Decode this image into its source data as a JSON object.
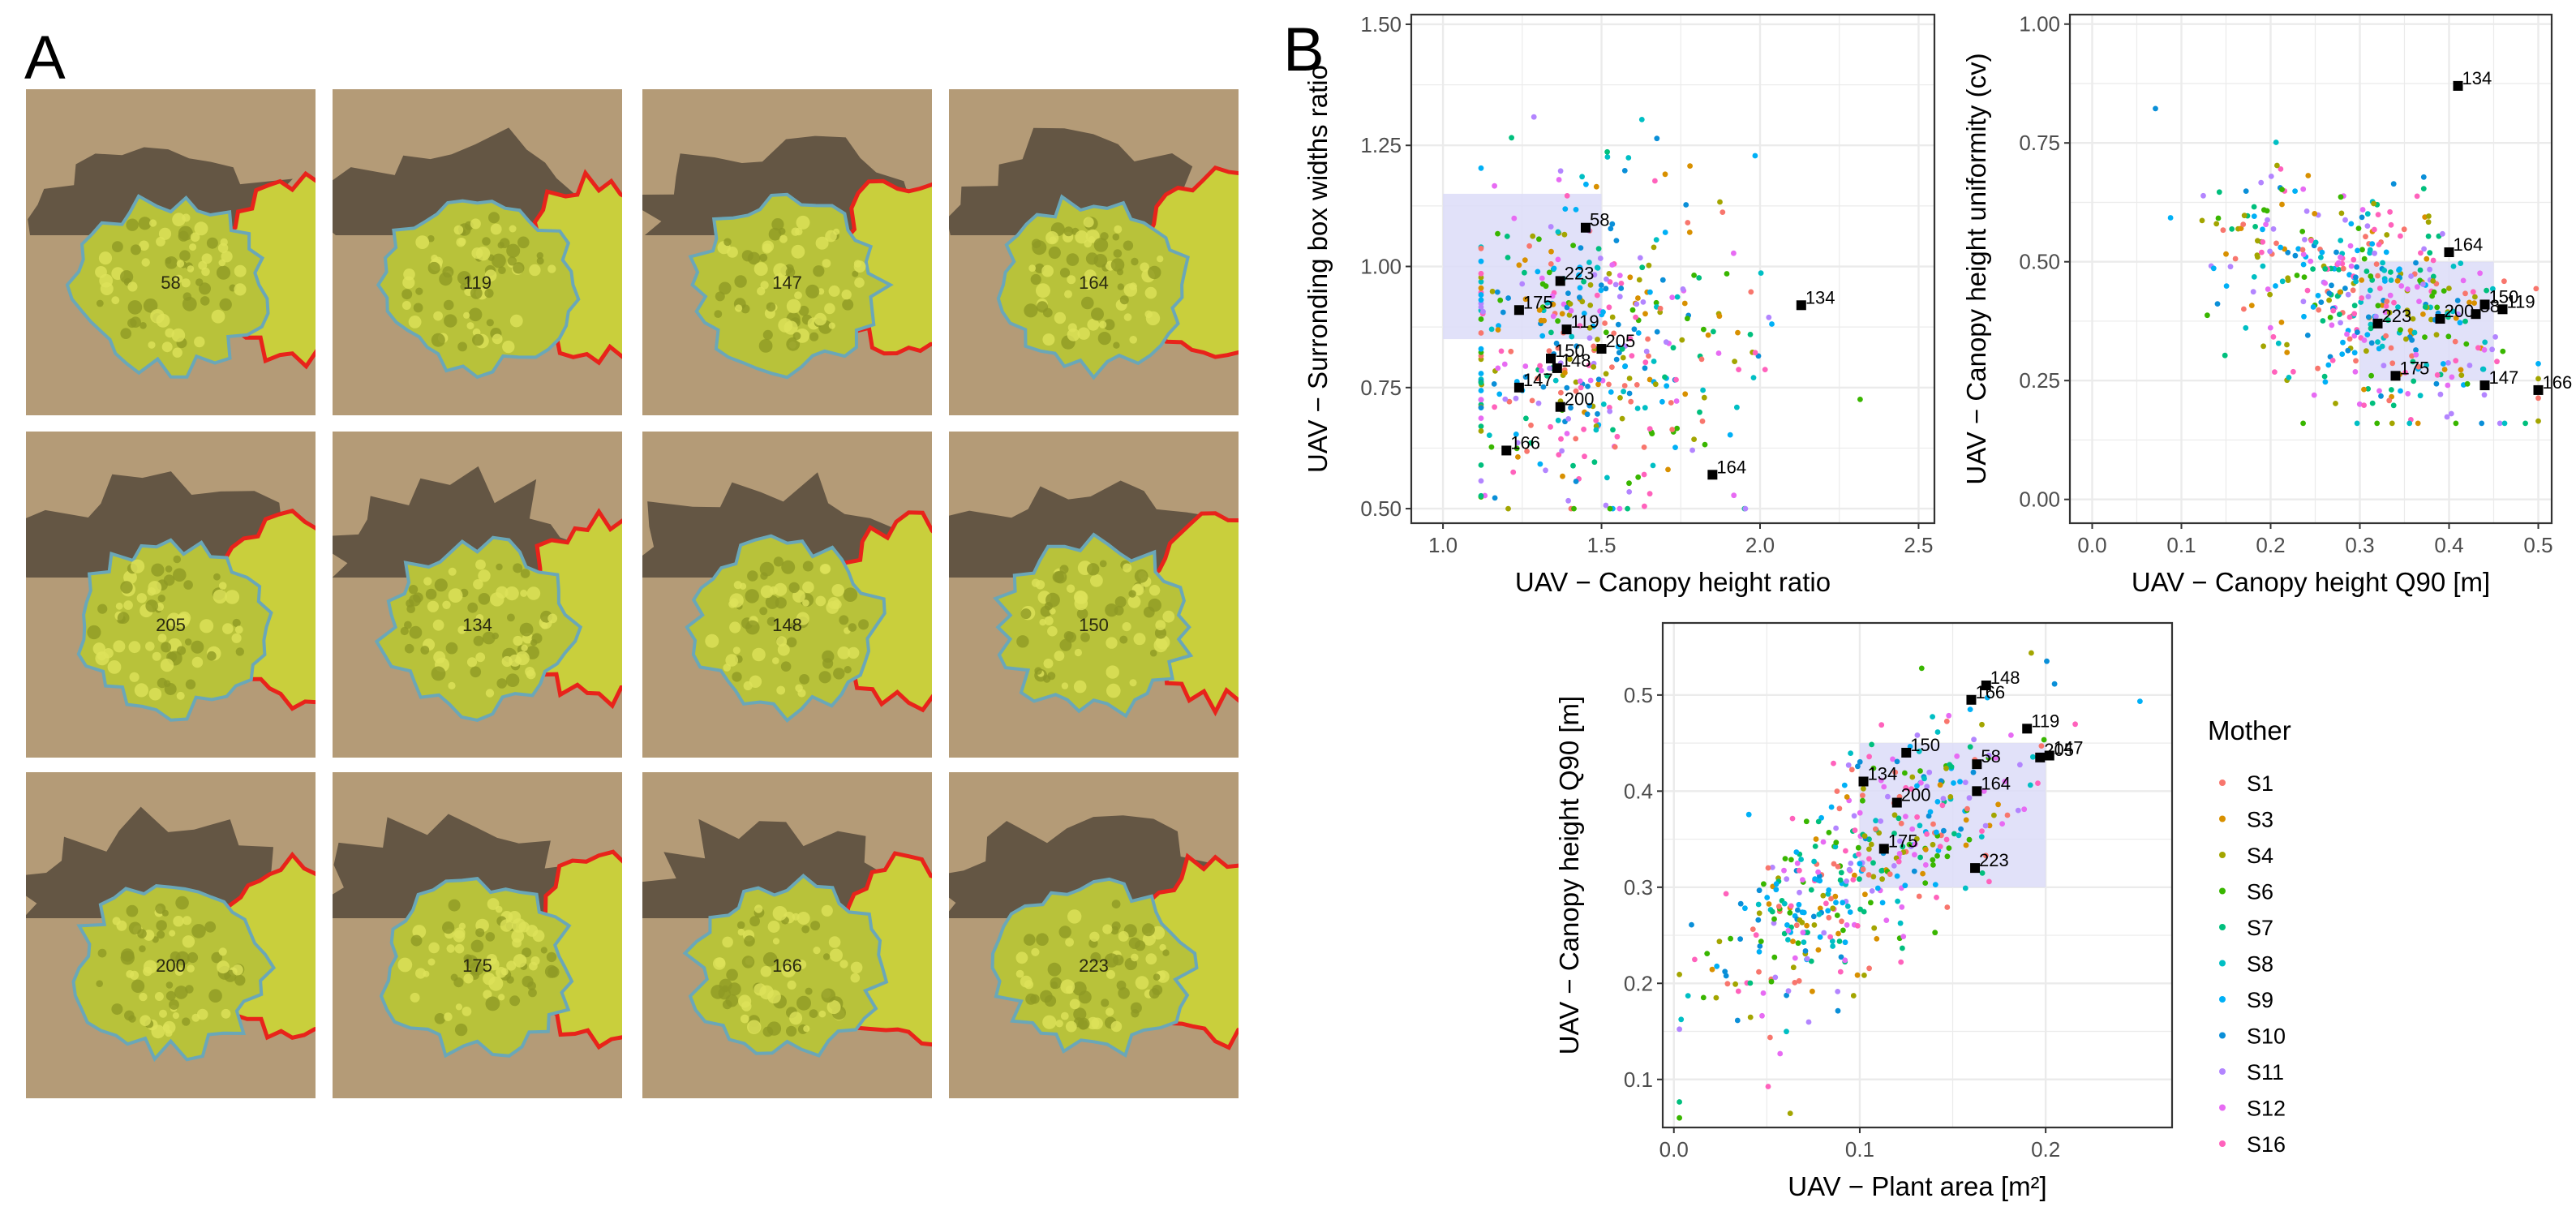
{
  "panel_a": {
    "letter": "A",
    "tiles": [
      {
        "label": "58"
      },
      {
        "label": "119"
      },
      {
        "label": "147"
      },
      {
        "label": "164"
      },
      {
        "label": "205"
      },
      {
        "label": "134"
      },
      {
        "label": "148"
      },
      {
        "label": "150"
      },
      {
        "label": "200"
      },
      {
        "label": "175"
      },
      {
        "label": "166"
      },
      {
        "label": "223"
      }
    ]
  },
  "panel_b": {
    "letter": "B"
  },
  "colors": {
    "highlight_box": "#dcdcf8",
    "highlight_point": "#000000",
    "grid": "#ebebeb",
    "soil": "#b49b77",
    "plant": "#c9cf3c",
    "outline_focus": "#6aa7b8",
    "outline_neighbor": "#e8231b"
  },
  "legend": {
    "title": "Mother",
    "entries": [
      {
        "name": "S1",
        "color": "#f8766d"
      },
      {
        "name": "S3",
        "color": "#d89000"
      },
      {
        "name": "S4",
        "color": "#a3a500"
      },
      {
        "name": "S6",
        "color": "#39b600"
      },
      {
        "name": "S7",
        "color": "#00bf7d"
      },
      {
        "name": "S8",
        "color": "#00bfc4"
      },
      {
        "name": "S9",
        "color": "#00b0f6"
      },
      {
        "name": "S10",
        "color": "#0a8fd8"
      },
      {
        "name": "S11",
        "color": "#b385ff"
      },
      {
        "name": "S12",
        "color": "#e76bf3"
      },
      {
        "name": "S16",
        "color": "#ff62bc"
      }
    ]
  },
  "chart_data": [
    {
      "type": "scatter",
      "id": "plot1",
      "xlabel": "UAV − Canopy height ratio",
      "ylabel": "UAV − Surronding box widths ratio",
      "xlim": [
        0.9,
        2.55
      ],
      "ylim": [
        0.47,
        1.52
      ],
      "xticks": [
        1.0,
        1.5,
        2.0,
        2.5
      ],
      "xtick_labels": [
        "1.0",
        "1.5",
        "2.0",
        "2.5"
      ],
      "yticks": [
        0.5,
        0.75,
        1.0,
        1.25,
        1.5
      ],
      "ytick_labels": [
        "0.50",
        "0.75",
        "1.00",
        "1.25",
        "1.50"
      ],
      "highlight_box": {
        "x": [
          1.0,
          1.5
        ],
        "y": [
          0.85,
          1.15
        ]
      },
      "highlighted_points": [
        {
          "id": "58",
          "x": 1.45,
          "y": 1.08
        },
        {
          "id": "223",
          "x": 1.37,
          "y": 0.97
        },
        {
          "id": "175",
          "x": 1.24,
          "y": 0.91
        },
        {
          "id": "119",
          "x": 1.39,
          "y": 0.87
        },
        {
          "id": "134",
          "x": 2.13,
          "y": 0.92
        },
        {
          "id": "205",
          "x": 1.5,
          "y": 0.83
        },
        {
          "id": "150",
          "x": 1.34,
          "y": 0.81
        },
        {
          "id": "148",
          "x": 1.36,
          "y": 0.79
        },
        {
          "id": "147",
          "x": 1.24,
          "y": 0.75
        },
        {
          "id": "200",
          "x": 1.37,
          "y": 0.71
        },
        {
          "id": "166",
          "x": 1.2,
          "y": 0.62
        },
        {
          "id": "164",
          "x": 1.85,
          "y": 0.57
        }
      ],
      "cloud": {
        "n": 430,
        "x_mean": 1.45,
        "x_sd": 0.22,
        "x_min": 1.12,
        "x_max": 2.5,
        "y_mean": 0.85,
        "y_sd": 0.17,
        "y_min": 0.5,
        "y_max": 1.43,
        "corr": 0.05
      }
    },
    {
      "type": "scatter",
      "id": "plot2",
      "xlabel": "UAV − Canopy height Q90 [m]",
      "ylabel": "UAV − Canopy height uniformity (cv)",
      "xlim": [
        -0.025,
        0.515
      ],
      "ylim": [
        -0.05,
        1.02
      ],
      "xticks": [
        0.0,
        0.1,
        0.2,
        0.3,
        0.4,
        0.5
      ],
      "xtick_labels": [
        "0.0",
        "0.1",
        "0.2",
        "0.3",
        "0.4",
        "0.5"
      ],
      "yticks": [
        0.0,
        0.25,
        0.5,
        0.75,
        1.0
      ],
      "ytick_labels": [
        "0.00",
        "0.25",
        "0.50",
        "0.75",
        "1.00"
      ],
      "highlight_box": {
        "x": [
          0.3,
          0.45
        ],
        "y": [
          0.25,
          0.5
        ]
      },
      "highlighted_points": [
        {
          "id": "134",
          "x": 0.41,
          "y": 0.87
        },
        {
          "id": "164",
          "x": 0.4,
          "y": 0.52
        },
        {
          "id": "150",
          "x": 0.44,
          "y": 0.41
        },
        {
          "id": "119",
          "x": 0.46,
          "y": 0.4
        },
        {
          "id": "58",
          "x": 0.43,
          "y": 0.39
        },
        {
          "id": "200",
          "x": 0.39,
          "y": 0.38
        },
        {
          "id": "223",
          "x": 0.32,
          "y": 0.37
        },
        {
          "id": "175",
          "x": 0.34,
          "y": 0.26
        },
        {
          "id": "147",
          "x": 0.44,
          "y": 0.24
        },
        {
          "id": "166",
          "x": 0.5,
          "y": 0.23
        }
      ],
      "cloud": {
        "n": 430,
        "x_mean": 0.31,
        "x_sd": 0.08,
        "x_min": 0.06,
        "x_max": 0.5,
        "y_mean": 0.42,
        "y_sd": 0.13,
        "y_min": 0.16,
        "y_max": 0.98,
        "corr": -0.45
      }
    },
    {
      "type": "scatter",
      "id": "plot3",
      "xlabel": "UAV − Plant area [m²]",
      "ylabel": "UAV − Canopy height Q90 [m]",
      "xlim": [
        -0.006,
        0.268
      ],
      "ylim": [
        0.05,
        0.575
      ],
      "xticks": [
        0.0,
        0.1,
        0.2
      ],
      "xtick_labels": [
        "0.0",
        "0.1",
        "0.2"
      ],
      "yticks": [
        0.1,
        0.2,
        0.3,
        0.4,
        0.5
      ],
      "ytick_labels": [
        "0.1",
        "0.2",
        "0.3",
        "0.4",
        "0.5"
      ],
      "highlight_box": {
        "x": [
          0.1,
          0.2
        ],
        "y": [
          0.3,
          0.45
        ]
      },
      "highlighted_points": [
        {
          "id": "148",
          "x": 0.168,
          "y": 0.51
        },
        {
          "id": "166",
          "x": 0.16,
          "y": 0.495
        },
        {
          "id": "119",
          "x": 0.19,
          "y": 0.465
        },
        {
          "id": "205",
          "x": 0.197,
          "y": 0.435
        },
        {
          "id": "147",
          "x": 0.202,
          "y": 0.437
        },
        {
          "id": "150",
          "x": 0.125,
          "y": 0.44
        },
        {
          "id": "58",
          "x": 0.163,
          "y": 0.428
        },
        {
          "id": "134",
          "x": 0.102,
          "y": 0.41
        },
        {
          "id": "164",
          "x": 0.163,
          "y": 0.4
        },
        {
          "id": "200",
          "x": 0.12,
          "y": 0.388
        },
        {
          "id": "175",
          "x": 0.113,
          "y": 0.34
        },
        {
          "id": "223",
          "x": 0.162,
          "y": 0.32
        }
      ],
      "cloud": {
        "n": 430,
        "x_mean": 0.1,
        "x_sd": 0.045,
        "x_min": 0.003,
        "x_max": 0.26,
        "y_mean": 0.32,
        "y_sd": 0.08,
        "y_min": 0.06,
        "y_max": 0.56,
        "corr": 0.78
      }
    }
  ]
}
